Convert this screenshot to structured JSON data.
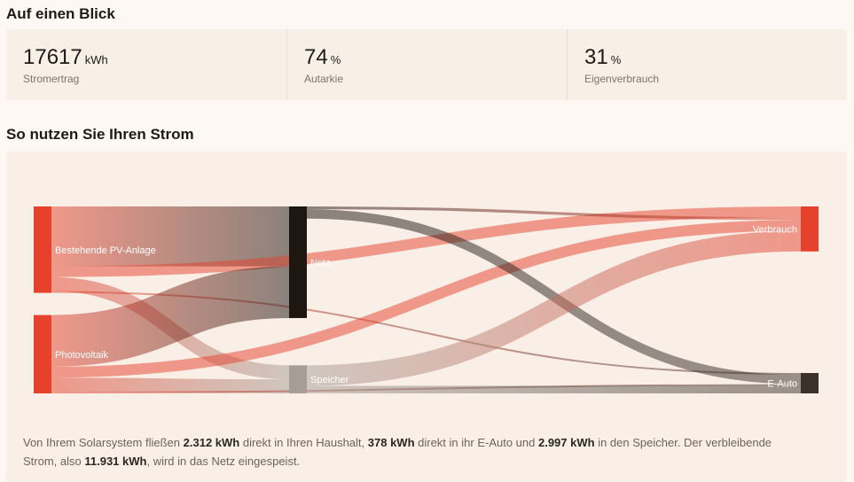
{
  "overview": {
    "title": "Auf einen Blick",
    "kpis": [
      {
        "value": "17617",
        "unit": "kWh",
        "label": "Stromertrag"
      },
      {
        "value": "74",
        "unit": "%",
        "label": "Autarkie"
      },
      {
        "value": "31",
        "unit": "%",
        "label": "Eigenverbrauch"
      }
    ]
  },
  "usage": {
    "title": "So nutzen Sie Ihren Strom",
    "summary": {
      "t1": "Von Ihrem Solarsystem fließen ",
      "v1": "2.312 kWh",
      "t2": " direkt in Ihren Haushalt, ",
      "v2": "378 kWh",
      "t3": " direkt in ihr E-Auto und ",
      "v3": "2.997 kWh",
      "t4": " in den Speicher. Der verbleibende Strom, also ",
      "v4": "11.931 kWh",
      "t5": ", wird in das Netz eingespeist."
    }
  },
  "colors": {
    "red": "#e5412c",
    "dark": "#1e1611",
    "gray": "#a59d96",
    "eauto": "#3a312a"
  },
  "chart_data": {
    "type": "sankey",
    "nodes": [
      {
        "id": "pv_alt",
        "label": "Bestehende PV-Anlage",
        "color": "#e5412c"
      },
      {
        "id": "pv",
        "label": "Photovoltaik",
        "color": "#e5412c"
      },
      {
        "id": "netz",
        "label": "Netz",
        "color": "#1e1611"
      },
      {
        "id": "speicher",
        "label": "Speicher",
        "color": "#a59d96"
      },
      {
        "id": "verbrauch",
        "label": "Verbrauch",
        "color": "#e5412c"
      },
      {
        "id": "eauto",
        "label": "E-Auto",
        "color": "#3a312a"
      }
    ],
    "links": [
      {
        "source": "pv_alt",
        "target": "netz",
        "value": 6400
      },
      {
        "source": "pv_alt",
        "target": "verbrauch",
        "value": 1150
      },
      {
        "source": "pv_alt",
        "target": "eauto",
        "value": 190
      },
      {
        "source": "pv_alt",
        "target": "speicher",
        "value": 1500
      },
      {
        "source": "pv",
        "target": "netz",
        "value": 5531
      },
      {
        "source": "pv",
        "target": "verbrauch",
        "value": 1162
      },
      {
        "source": "pv",
        "target": "eauto",
        "value": 188
      },
      {
        "source": "pv",
        "target": "speicher",
        "value": 1497
      },
      {
        "source": "netz",
        "target": "verbrauch",
        "value": 300
      },
      {
        "source": "netz",
        "target": "eauto",
        "value": 1000
      },
      {
        "source": "speicher",
        "target": "verbrauch",
        "value": 2200
      },
      {
        "source": "speicher",
        "target": "eauto",
        "value": 800
      }
    ]
  }
}
